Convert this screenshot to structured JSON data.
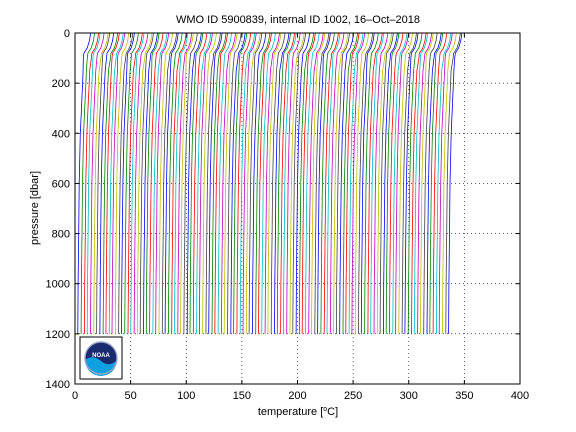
{
  "chart_data": {
    "type": "line",
    "title": "WMO ID 5900839, internal ID 1002, 16–Oct–2018",
    "xlabel_prefix": "temperature [",
    "xlabel_superscript": "o",
    "xlabel_suffix": "C]",
    "ylabel": "pressure [dbar]",
    "xlim": [
      0,
      400
    ],
    "ylim": [
      0,
      1400
    ],
    "y_reversed": true,
    "grid": "dotted",
    "x_ticks": [
      0,
      50,
      100,
      150,
      200,
      250,
      300,
      350,
      400
    ],
    "y_ticks": [
      0,
      200,
      400,
      600,
      800,
      1000,
      1200,
      1400
    ],
    "x_tick_labels": [
      "0",
      "50",
      "100",
      "150",
      "200",
      "250",
      "300",
      "350",
      "400"
    ],
    "y_tick_labels": [
      "0",
      "200",
      "400",
      "600",
      "800",
      "1000",
      "1200",
      "1400"
    ],
    "waterfall": {
      "profile_count": 120,
      "first_offset": 0,
      "offset_step": 2.8,
      "max_pressure": 1200,
      "profile_shape": {
        "pressure": [
          0,
          30,
          60,
          80,
          100,
          150,
          200,
          300,
          400,
          600,
          800,
          1000,
          1200
        ],
        "temperature": [
          15,
          14,
          12,
          9,
          8.5,
          7.5,
          7,
          6,
          5,
          4,
          3.5,
          3,
          2.7
        ]
      }
    },
    "colors": [
      "#0000ff",
      "#008000",
      "#ff0000",
      "#00bfbf",
      "#bf00bf",
      "#bfbf00",
      "#404040"
    ]
  },
  "logo": {
    "text": "NOAA",
    "colors": {
      "top": "#1a2a6e",
      "wave": "#0ea0e0",
      "ring": "#ffffff"
    }
  }
}
